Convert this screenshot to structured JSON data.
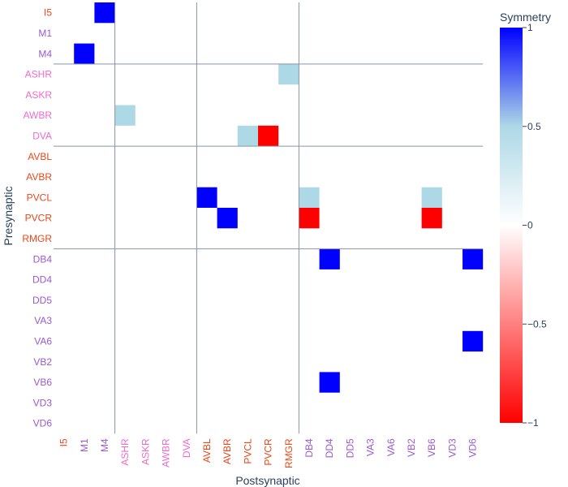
{
  "chart_data": {
    "type": "heatmap",
    "xlabel": "Postsynaptic",
    "ylabel": "Presynaptic",
    "neurons": [
      "I5",
      "M1",
      "M4",
      "ASHR",
      "ASKR",
      "AWBR",
      "DVA",
      "AVBL",
      "AVBR",
      "PVCL",
      "PVCR",
      "RMGR",
      "DB4",
      "DD4",
      "DD5",
      "VA3",
      "VA6",
      "VB2",
      "VB6",
      "VD3",
      "VD6"
    ],
    "x_categories": [
      "I5",
      "M1",
      "M4",
      "ASHR",
      "ASKR",
      "AWBR",
      "DVA",
      "AVBL",
      "AVBR",
      "PVCL",
      "PVCR",
      "RMGR",
      "DB4",
      "DD4",
      "DD5",
      "VA3",
      "VA6",
      "VB2",
      "VB6",
      "VD3",
      "VD6"
    ],
    "y_categories": [
      "I5",
      "M1",
      "M4",
      "ASHR",
      "ASKR",
      "AWBR",
      "DVA",
      "AVBL",
      "AVBR",
      "PVCL",
      "PVCR",
      "RMGR",
      "DB4",
      "DD4",
      "DD5",
      "VA3",
      "VA6",
      "VB2",
      "VB6",
      "VD3",
      "VD6"
    ],
    "label_colors": {
      "I5": "#e8481b",
      "M1": "#9b59d0",
      "M4": "#9b59d0",
      "ASHR": "#f06ad0",
      "ASKR": "#f06ad0",
      "AWBR": "#f06ad0",
      "DVA": "#f06ad0",
      "AVBL": "#e8481b",
      "AVBR": "#e8481b",
      "PVCL": "#e8481b",
      "PVCR": "#e8481b",
      "RMGR": "#e8481b",
      "DB4": "#9b59d0",
      "DD4": "#9b59d0",
      "DD5": "#9b59d0",
      "VA3": "#9b59d0",
      "VA6": "#9b59d0",
      "VB2": "#9b59d0",
      "VB6": "#9b59d0",
      "VD3": "#9b59d0",
      "VD6": "#9b59d0"
    },
    "cells": [
      {
        "pre": "I5",
        "post": "M4",
        "value": 1
      },
      {
        "pre": "M4",
        "post": "M1",
        "value": 1
      },
      {
        "pre": "ASHR",
        "post": "RMGR",
        "value": 0.5
      },
      {
        "pre": "AWBR",
        "post": "ASHR",
        "value": 0.5
      },
      {
        "pre": "DVA",
        "post": "PVCL",
        "value": 0.5
      },
      {
        "pre": "DVA",
        "post": "PVCR",
        "value": -1
      },
      {
        "pre": "PVCL",
        "post": "AVBL",
        "value": 1
      },
      {
        "pre": "PVCL",
        "post": "DB4",
        "value": 0.5
      },
      {
        "pre": "PVCL",
        "post": "VB6",
        "value": 0.5
      },
      {
        "pre": "PVCR",
        "post": "AVBR",
        "value": 1
      },
      {
        "pre": "PVCR",
        "post": "DB4",
        "value": -1
      },
      {
        "pre": "PVCR",
        "post": "VB6",
        "value": -1
      },
      {
        "pre": "DB4",
        "post": "DD4",
        "value": 1
      },
      {
        "pre": "DB4",
        "post": "VD6",
        "value": 1
      },
      {
        "pre": "VA6",
        "post": "VD6",
        "value": 1
      },
      {
        "pre": "VB6",
        "post": "DD4",
        "value": 1
      }
    ],
    "group_boundaries_after": [
      "M4",
      "DVA",
      "RMGR"
    ],
    "colorbar": {
      "title": "Symmetry",
      "range": [
        -1,
        1
      ],
      "ticks": [
        1,
        0.5,
        0,
        -0.5,
        -1
      ],
      "tick_labels": [
        "1",
        "0.5",
        "0",
        "−0.5",
        "−1"
      ],
      "colors": [
        "#ff0000",
        "#ffffff",
        "#add8e6",
        "#0000ff"
      ]
    }
  }
}
